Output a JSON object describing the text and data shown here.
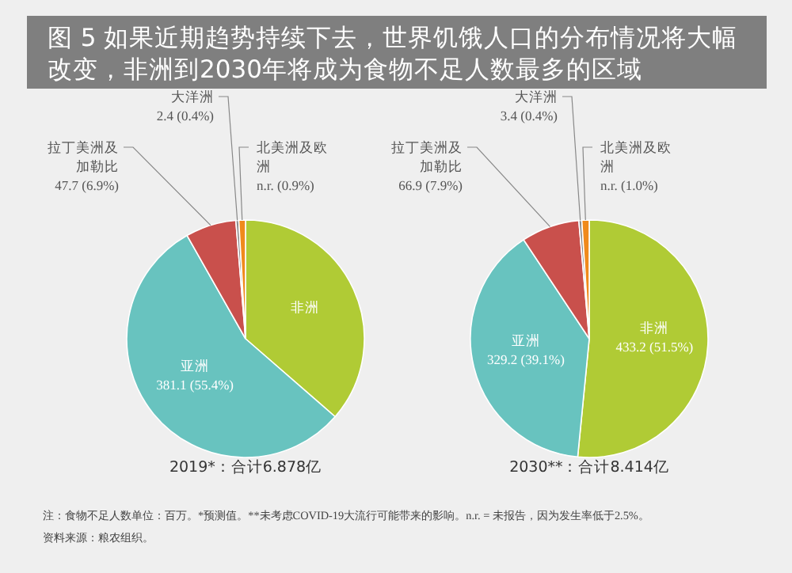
{
  "chart_data": [
    {
      "type": "other",
      "title": "图 5 如果近期趋势持续下去，世界饥饿人口的分布情况将大幅改变，非洲到2030年将成为食物不足人数最多的区域",
      "annotations": [
        "注：食物不足人数单位：百万。*预测值。**未考虑COVID-19大流行可能带来的影响。n.r. = 未报告，因为发生率低于2.5%。",
        "资料来源：粮农组织。"
      ]
    },
    {
      "type": "pie",
      "title": "2019*：合计6.878亿",
      "categories": [
        "非洲",
        "亚洲",
        "拉丁美洲及加勒比",
        "大洋洲",
        "北美洲及欧洲"
      ],
      "values": [
        36.4,
        55.4,
        6.9,
        0.4,
        0.9
      ],
      "colors": [
        "#b0cb35",
        "#68c3bf",
        "#c9504c",
        "#8c8c8c",
        "#f08a1c"
      ],
      "value_labels": [
        null,
        "381.1 (55.4%)",
        "47.7 (6.9%)",
        "2.4 (0.4%)",
        "n.r. (0.9%)"
      ]
    },
    {
      "type": "pie",
      "title": "2030**：合计8.414亿",
      "categories": [
        "非洲",
        "亚洲",
        "拉丁美洲及加勒比",
        "大洋洲",
        "北美洲及欧洲"
      ],
      "values": [
        51.5,
        39.1,
        7.9,
        0.4,
        1.0
      ],
      "colors": [
        "#b0cb35",
        "#68c3bf",
        "#c9504c",
        "#8c8c8c",
        "#f08a1c"
      ],
      "value_labels": [
        "433.2 (51.5%)",
        "329.2 (39.1%)",
        "66.9 (7.9%)",
        "3.4 (0.4%)",
        "n.r. (1.0%)"
      ]
    }
  ]
}
